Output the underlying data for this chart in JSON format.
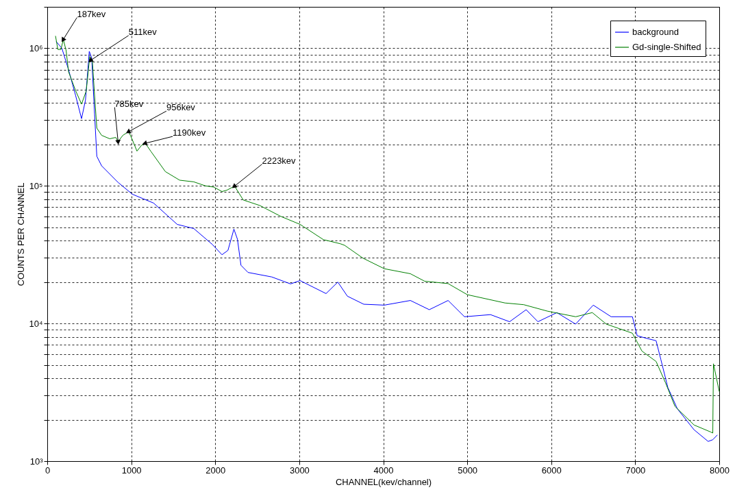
{
  "chart_data": {
    "type": "line",
    "xlabel": "CHANNEL(kev/channel)",
    "ylabel": "COUNTS PER CHANNEL",
    "log": true,
    "grid": true,
    "legend": "top right",
    "xlim": [
      0,
      8000
    ],
    "xticks": [
      0,
      1000,
      2000,
      3000,
      4000,
      5000,
      6000,
      7000,
      8000
    ],
    "ylim": [
      1000,
      2000000
    ],
    "yticks": [
      {
        "value": 1000,
        "label": "10³"
      },
      {
        "value": 2000,
        "label": null
      },
      {
        "value": 3000,
        "label": null
      },
      {
        "value": 4000,
        "label": null
      },
      {
        "value": 5000,
        "label": null
      },
      {
        "value": 6000,
        "label": null
      },
      {
        "value": 7000,
        "label": null
      },
      {
        "value": 8000,
        "label": null
      },
      {
        "value": 9000,
        "label": null
      },
      {
        "value": 10000,
        "label": "10⁴"
      },
      {
        "value": 20000,
        "label": null
      },
      {
        "value": 30000,
        "label": null
      },
      {
        "value": 40000,
        "label": null
      },
      {
        "value": 50000,
        "label": null
      },
      {
        "value": 60000,
        "label": null
      },
      {
        "value": 70000,
        "label": null
      },
      {
        "value": 80000,
        "label": null
      },
      {
        "value": 90000,
        "label": null
      },
      {
        "value": 100000,
        "label": "10⁵"
      },
      {
        "value": 200000,
        "label": null
      },
      {
        "value": 300000,
        "label": null
      },
      {
        "value": 400000,
        "label": null
      },
      {
        "value": 500000,
        "label": null
      },
      {
        "value": 600000,
        "label": null
      },
      {
        "value": 700000,
        "label": null
      },
      {
        "value": 800000,
        "label": null
      },
      {
        "value": 900000,
        "label": null
      },
      {
        "value": 1000000,
        "label": "10⁶"
      },
      {
        "value": 2000000,
        "label": null
      }
    ],
    "series": [
      {
        "name": "background",
        "color": "#0000ff",
        "x": [
          106,
          174,
          253,
          337,
          408,
          455,
          500,
          529,
          563,
          590,
          647,
          843,
          1013,
          1266,
          1547,
          1744,
          1966,
          2080,
          2151,
          2222,
          2264,
          2306,
          2390,
          2672,
          2896,
          3010,
          3319,
          3459,
          3573,
          3768,
          4013,
          4323,
          4548,
          4772,
          4967,
          5277,
          5504,
          5701,
          5841,
          6067,
          6290,
          6500,
          6713,
          6966,
          7023,
          7135,
          7248,
          7304,
          7388,
          7501,
          7700,
          7868,
          7923,
          7978
        ],
        "values": [
          1120000,
          1000000,
          700000,
          455000,
          308000,
          420000,
          950000,
          850000,
          333000,
          164000,
          140000,
          106000,
          87000,
          75000,
          52500,
          49000,
          37500,
          31600,
          34000,
          48500,
          41000,
          26500,
          23500,
          21800,
          19400,
          20500,
          16500,
          20000,
          15800,
          13800,
          13600,
          14700,
          12600,
          14700,
          11200,
          11600,
          10300,
          12600,
          10300,
          12000,
          9900,
          13600,
          11200,
          11200,
          8150,
          7800,
          7500,
          5500,
          3430,
          2400,
          1690,
          1390,
          1430,
          1550
        ]
      },
      {
        "name": "Gd-single-Shifted",
        "color": "#008000",
        "x": [
          98,
          126,
          163,
          191,
          225,
          253,
          337,
          408,
          464,
          506,
          538,
          563,
          590,
          647,
          744,
          815,
          843,
          900,
          970,
          1013,
          1068,
          1125,
          1167,
          1237,
          1406,
          1576,
          1744,
          1884,
          1982,
          2080,
          2137,
          2230,
          2333,
          2531,
          2781,
          3010,
          3287,
          3488,
          3540,
          3760,
          4013,
          4323,
          4492,
          4772,
          5000,
          5449,
          5673,
          5954,
          6291,
          6489,
          6655,
          6966,
          7080,
          7248,
          7361,
          7473,
          7700,
          7896,
          7923,
          7931,
          8000
        ],
        "values": [
          1230000,
          980000,
          980000,
          1160000,
          960000,
          676000,
          493000,
          393000,
          490000,
          873000,
          790000,
          456000,
          263000,
          233000,
          220000,
          225000,
          210000,
          233000,
          248000,
          216000,
          179000,
          198000,
          204000,
          177000,
          127000,
          110000,
          107000,
          100000,
          98000,
          91000,
          93000,
          99600,
          79000,
          72000,
          60000,
          52500,
          40700,
          38000,
          37000,
          29800,
          25000,
          23000,
          20300,
          19500,
          16200,
          14100,
          13700,
          12300,
          11200,
          12000,
          9900,
          8500,
          6300,
          5300,
          3700,
          2500,
          1830,
          1630,
          1600,
          5100,
          3200
        ]
      }
    ],
    "annotations": [
      {
        "text": "187kev",
        "x": 191,
        "y": 1160000
      },
      {
        "text": "511kev",
        "x": 520,
        "y": 820000
      },
      {
        "text": "785kev",
        "x": 843,
        "y": 210000
      },
      {
        "text": "956kev",
        "x": 970,
        "y": 248000
      },
      {
        "text": "1190kev",
        "x": 1167,
        "y": 204000
      },
      {
        "text": "2223kev",
        "x": 2230,
        "y": 99600
      }
    ]
  }
}
